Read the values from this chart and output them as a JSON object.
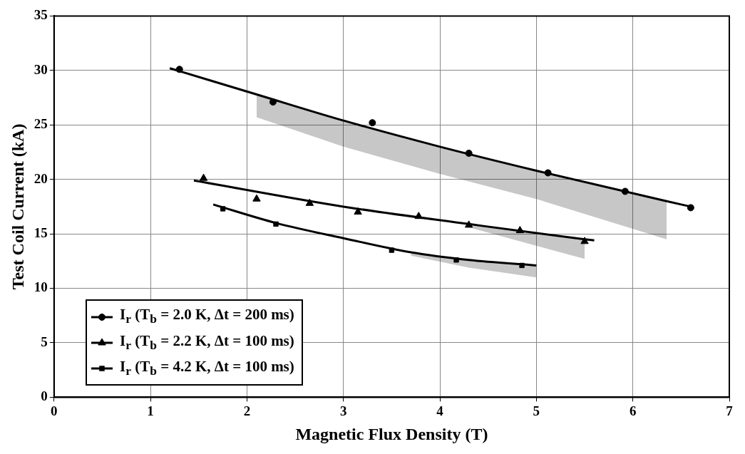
{
  "chart_data": {
    "type": "scatter",
    "xlabel": "Magnetic Flux Density (T)",
    "ylabel": "Test Coil Current (kA)",
    "xlim": [
      0,
      7
    ],
    "xticks": [
      0,
      1,
      2,
      3,
      4,
      5,
      6,
      7
    ],
    "ylim": [
      0,
      35
    ],
    "yticks": [
      0,
      5,
      10,
      15,
      20,
      25,
      30,
      35
    ],
    "grid": true,
    "legend": "bottom left",
    "series": [
      {
        "name": "I$_{r}$ (T$_{b}$ = 2.0 K, Δt = 200 ms)",
        "color": "#000000",
        "type": "scatter",
        "marker": "circle",
        "x": [
          1.3,
          2.27,
          3.3,
          4.3,
          5.12,
          5.92,
          6.6
        ],
        "values": [
          30.1,
          27.1,
          25.2,
          22.4,
          20.6,
          18.9,
          17.4
        ]
      },
      {
        "name": "I$_{r}$ (T$_{b}$ = 2.2 K, Δt = 100 ms)",
        "color": "#000000",
        "type": "scatter",
        "marker": "triangle",
        "x": [
          1.55,
          2.1,
          2.65,
          3.15,
          3.78,
          4.3,
          4.83,
          5.5
        ],
        "values": [
          20.1,
          18.2,
          17.8,
          17.0,
          16.6,
          15.8,
          15.3,
          14.3
        ]
      },
      {
        "name": "I$_{r}$ (T$_{b}$ = 4.2 K, Δt = 100 ms)",
        "color": "#000000",
        "type": "scatter",
        "marker": "square",
        "x": [
          1.75,
          2.3,
          3.5,
          4.17,
          4.85
        ],
        "values": [
          17.3,
          15.9,
          13.5,
          12.6,
          12.1
        ]
      },
      {
        "color": "#000000",
        "type": "line",
        "marker": "none",
        "x": [
          1.2,
          2.1,
          3,
          4,
          5,
          6.35,
          6.6
        ],
        "values": [
          30.2,
          27.8,
          25.4,
          23.0,
          20.8,
          18.0,
          17.5
        ],
        "upper": [
          null,
          27.8,
          25.4,
          23.0,
          20.8,
          18.0,
          null
        ],
        "lower": [
          null,
          25.7,
          23.0,
          20.5,
          18.2,
          14.5,
          null
        ]
      },
      {
        "color": "#000000",
        "type": "line",
        "marker": "none",
        "x": [
          1.45,
          3,
          4.3,
          5.5,
          5.6
        ],
        "values": [
          19.9,
          17.5,
          15.9,
          14.5,
          14.4
        ],
        "upper": [
          null,
          null,
          15.9,
          14.5,
          null
        ],
        "lower": [
          null,
          null,
          15.6,
          12.7,
          null
        ]
      },
      {
        "color": "#000000",
        "type": "line",
        "marker": "none",
        "x": [
          1.65,
          2.3,
          3,
          3.7,
          4.3,
          5.0
        ],
        "values": [
          17.7,
          16.0,
          14.6,
          13.3,
          12.6,
          12.1
        ],
        "upper": [
          null,
          null,
          null,
          13.3,
          12.6,
          12.1
        ],
        "lower": [
          null,
          null,
          null,
          13.0,
          11.9,
          11.0
        ]
      }
    ]
  }
}
